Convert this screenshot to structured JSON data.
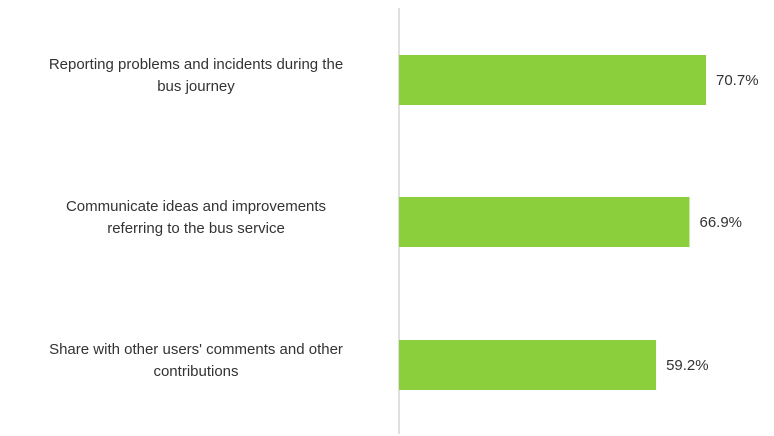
{
  "chart_data": {
    "type": "bar",
    "orientation": "horizontal",
    "categories": [
      "Reporting problems and incidents during the bus journey",
      "Communicate ideas and improvements referring to the bus service",
      "Share with other users' comments and other contributions"
    ],
    "category_lines": [
      [
        "Reporting problems and incidents during the",
        "bus journey"
      ],
      [
        "Communicate ideas and improvements",
        "referring to the bus service"
      ],
      [
        "Share with other users' comments and other",
        "contributions"
      ]
    ],
    "values": [
      70.7,
      66.9,
      59.2
    ],
    "data_labels": [
      "70.7%",
      "66.9%",
      "59.2%"
    ],
    "xlim": [
      0,
      100
    ],
    "bar_color": "#8ccf3c",
    "axis_color": "#bfbfbf",
    "grid": false,
    "legend": "none"
  }
}
